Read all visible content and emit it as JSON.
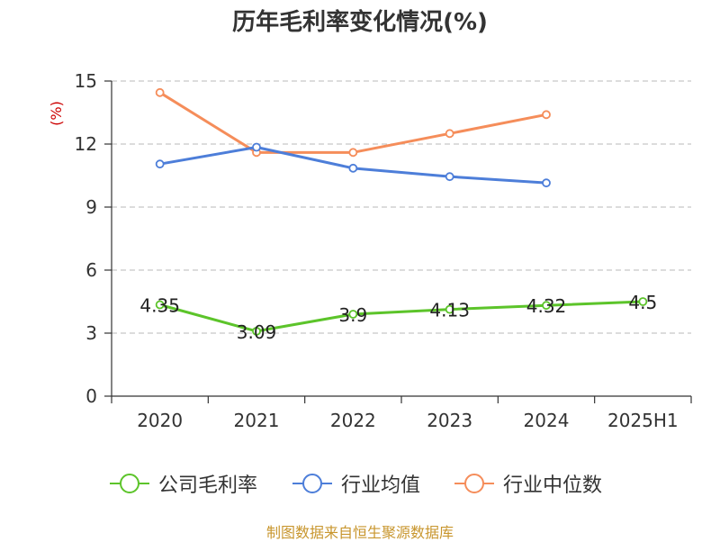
{
  "chart_data": {
    "type": "line",
    "title": "历年毛利率变化情况(%)",
    "ylabel": "(%)",
    "ylim": [
      0,
      15
    ],
    "yticks": [
      0,
      3,
      6,
      9,
      12,
      15
    ],
    "categories": [
      "2020",
      "2021",
      "2022",
      "2023",
      "2024",
      "2025H1"
    ],
    "grid": true,
    "legend_position": "bottom",
    "series": [
      {
        "name": "公司毛利率",
        "color": "#5cc42a",
        "values": [
          4.35,
          3.09,
          3.9,
          4.13,
          4.32,
          4.5
        ],
        "data_labels": [
          "4.35",
          "3.09",
          "3.9",
          "4.13",
          "4.32",
          "4.5"
        ]
      },
      {
        "name": "行业均值",
        "color": "#4d7ed9",
        "values": [
          11.05,
          11.85,
          10.85,
          10.45,
          10.15,
          null
        ]
      },
      {
        "name": "行业中位数",
        "color": "#f58d5a",
        "values": [
          14.45,
          11.6,
          11.6,
          12.5,
          13.4,
          null
        ]
      }
    ]
  },
  "source_note": "制图数据来自恒生聚源数据库"
}
